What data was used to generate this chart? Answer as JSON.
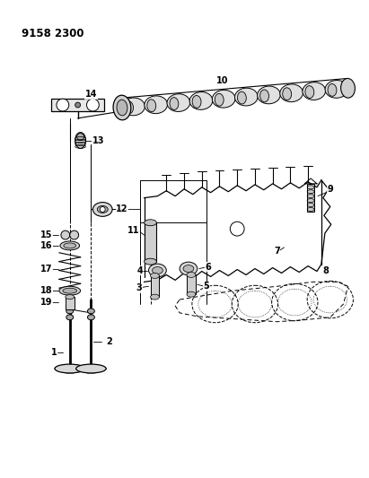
{
  "title": "9158 2300",
  "bg_color": "#ffffff",
  "line_color": "#000000",
  "figsize": [
    4.11,
    5.33
  ],
  "dpi": 100
}
